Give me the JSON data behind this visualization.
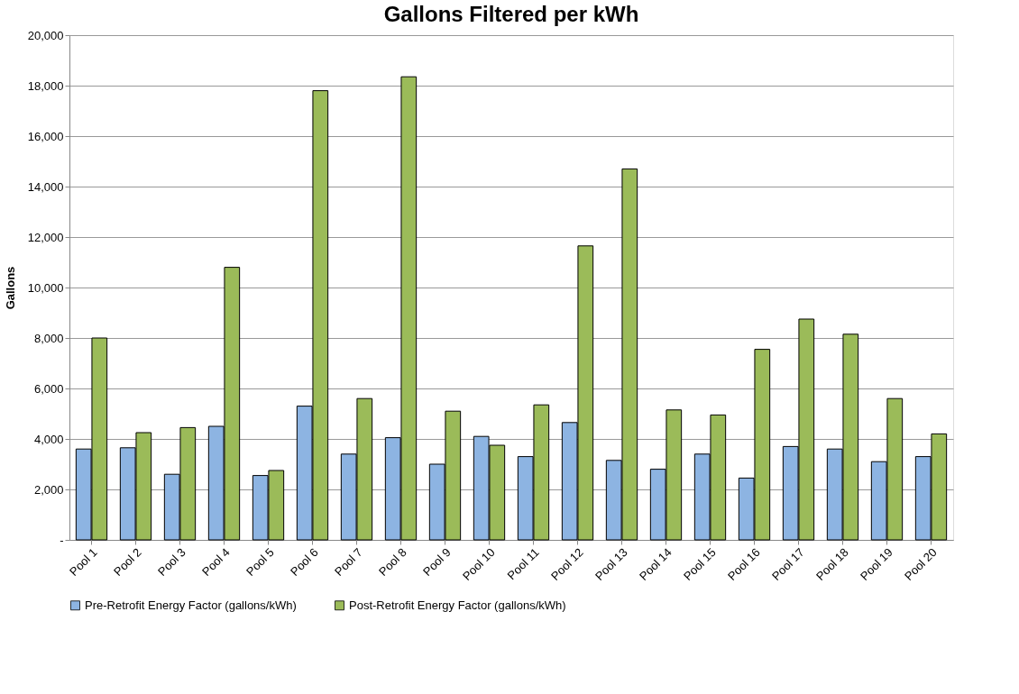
{
  "chart_data": {
    "type": "bar",
    "title": "Gallons Filtered per kWh",
    "ylabel": "Gallons",
    "categories": [
      "Pool 1",
      "Pool 2",
      "Pool 3",
      "Pool 4",
      "Pool 5",
      "Pool 6",
      "Pool 7",
      "Pool 8",
      "Pool 9",
      "Pool 10",
      "Pool 11",
      "Pool 12",
      "Pool 13",
      "Pool 14",
      "Pool 15",
      "Pool 16",
      "Pool 17",
      "Pool 18",
      "Pool 19",
      "Pool 20"
    ],
    "series": [
      {
        "name": "Pre-Retrofit Energy Factor (gallons/kWh)",
        "color": "#8db4e2",
        "values": [
          3600,
          3650,
          2600,
          4500,
          2550,
          5300,
          3400,
          4050,
          3000,
          4100,
          3300,
          4650,
          3150,
          2800,
          3400,
          2450,
          3700,
          3600,
          3100,
          3300
        ]
      },
      {
        "name": "Post-Retrofit Energy Factor (gallons/kWh)",
        "color": "#9bbb59",
        "values": [
          8000,
          4250,
          4450,
          10800,
          2750,
          17800,
          5600,
          18350,
          5100,
          3750,
          5350,
          11650,
          14700,
          5150,
          4950,
          7550,
          8750,
          8150,
          5600,
          4200
        ]
      }
    ],
    "ylim": [
      0,
      20000
    ],
    "yticks": [
      {
        "value": 0,
        "label": "-"
      },
      {
        "value": 2000,
        "label": "2,000"
      },
      {
        "value": 4000,
        "label": "4,000"
      },
      {
        "value": 6000,
        "label": "6,000"
      },
      {
        "value": 8000,
        "label": "8,000"
      },
      {
        "value": 10000,
        "label": "10,000"
      },
      {
        "value": 12000,
        "label": "12,000"
      },
      {
        "value": 14000,
        "label": "14,000"
      },
      {
        "value": 16000,
        "label": "16,000"
      },
      {
        "value": 18000,
        "label": "18,000"
      },
      {
        "value": 20000,
        "label": "20,000"
      }
    ],
    "grid": "y",
    "legend": "bottom"
  }
}
